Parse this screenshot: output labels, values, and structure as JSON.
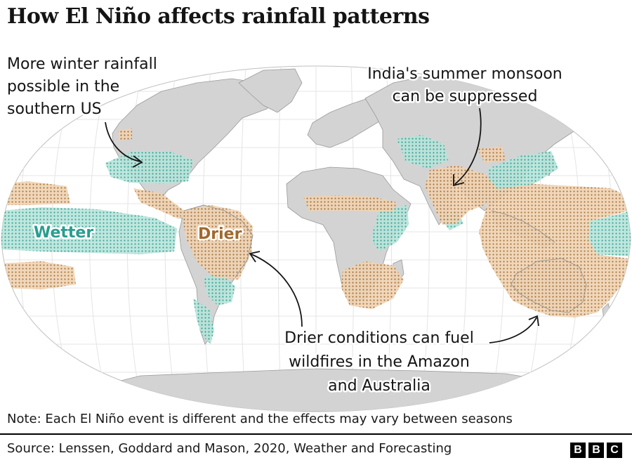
{
  "title": "How El Niño affects rainfall patterns",
  "annotations": {
    "us_rain": [
      "More winter rainfall",
      "possible in the",
      "southern US"
    ],
    "india": [
      "India's summer monsoon",
      "can be suppressed"
    ],
    "wildfires": [
      "Drier conditions can fuel",
      "wildfires in the Amazon",
      "and Australia"
    ]
  },
  "legend": {
    "wetter": {
      "label": "Wetter",
      "color": "#2a9d8f",
      "fill": "#9fd9cc"
    },
    "drier": {
      "label": "Drier",
      "color": "#a0692e",
      "fill": "#e9c39a"
    }
  },
  "colors": {
    "ocean": "#ffffff",
    "land": "#d3d3d3",
    "graticule": "#e4e4e4"
  },
  "note": "Note: Each El Niño event is different and the effects may vary between seasons",
  "source": "Source: Lenssen, Goddard and Mason, 2020, Weather and Forecasting",
  "logo": [
    "B",
    "B",
    "C"
  ]
}
